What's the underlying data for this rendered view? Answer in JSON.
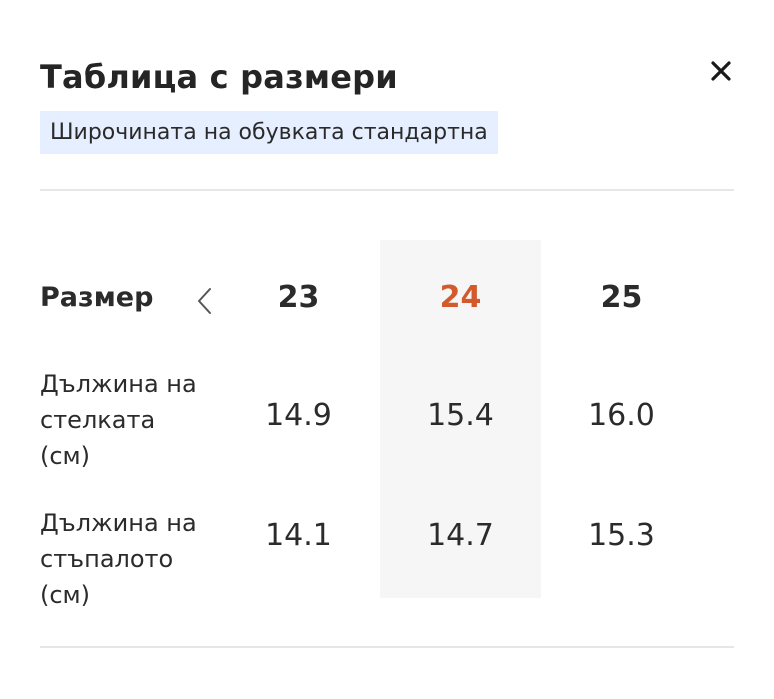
{
  "modal": {
    "title": "Таблица с размери",
    "close_icon": "close-icon",
    "width_badge": "Широчината на обувката стандартна"
  },
  "table": {
    "header_label": "Размер",
    "prev_icon": "chevron-left-icon",
    "sizes": [
      "23",
      "24",
      "25"
    ],
    "selected_size": "24",
    "rows": [
      {
        "label": "Дължина на\nстелката\n(см)",
        "values": [
          "14.9",
          "15.4",
          "16.0"
        ]
      },
      {
        "label": "Дължина на\nстъпалото\n(см)",
        "values": [
          "14.1",
          "14.7",
          "15.3"
        ]
      }
    ]
  },
  "colors": {
    "selected_size": "#d25a2c",
    "badge_background": "#e6efff",
    "highlight_column": "#f6f6f6"
  }
}
